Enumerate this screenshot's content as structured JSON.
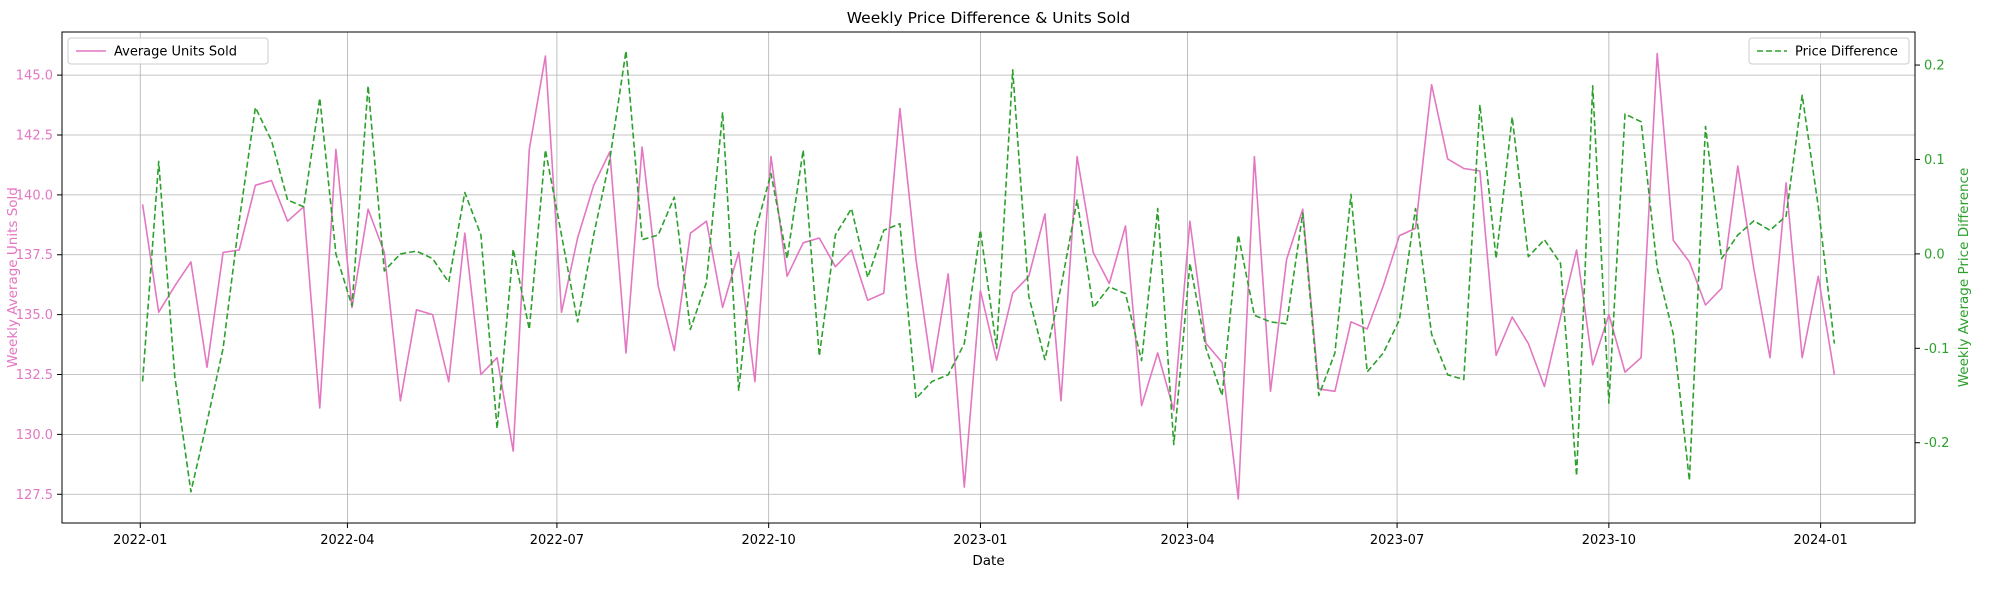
{
  "chart_data": {
    "type": "line",
    "title": "Weekly Price Difference & Units Sold",
    "xlabel": "Date",
    "ylabel_left": "Weekly Average Units Sold",
    "ylabel_right": "Weekly Average Price Difference",
    "grid": true,
    "xlim": [
      "2021-11-28",
      "2024-02-11"
    ],
    "ylim_left": [
      126.3,
      146.8
    ],
    "ylim_right": [
      -0.285,
      0.235
    ],
    "x_ticks": [
      "2022-01",
      "2022-04",
      "2022-07",
      "2022-10",
      "2023-01",
      "2023-04",
      "2023-07",
      "2023-10",
      "2024-01"
    ],
    "y_ticks_left": [
      "127.5",
      "130.0",
      "132.5",
      "135.0",
      "137.5",
      "140.0",
      "142.5",
      "145.0"
    ],
    "y_ticks_right": [
      "-0.2",
      "-0.1",
      "0.0",
      "0.1",
      "0.2"
    ],
    "colors": {
      "units": "#e377c2",
      "price": "#2ca02c"
    },
    "x_start": "2022-01-02",
    "x_step_days": 7,
    "series": [
      {
        "name": "Average Units Sold",
        "axis": "left",
        "legend_position": "upper left",
        "style": "solid",
        "values": [
          139.6,
          135.1,
          136.2,
          137.2,
          132.8,
          137.6,
          137.7,
          140.4,
          140.6,
          138.9,
          139.5,
          131.1,
          141.9,
          135.3,
          139.4,
          137.6,
          131.4,
          135.2,
          135.0,
          132.2,
          138.4,
          132.5,
          133.2,
          129.3,
          141.9,
          145.8,
          135.1,
          138.2,
          140.4,
          141.8,
          133.4,
          142.0,
          136.2,
          133.5,
          138.4,
          138.9,
          135.3,
          137.6,
          132.2,
          141.6,
          136.6,
          138.0,
          138.2,
          137.0,
          137.7,
          135.6,
          135.9,
          143.6,
          137.3,
          132.6,
          136.7,
          127.8,
          136.0,
          133.1,
          135.9,
          136.6,
          139.2,
          131.4,
          141.6,
          137.6,
          136.3,
          138.7,
          131.2,
          133.4,
          131.0,
          138.9,
          133.8,
          133.0,
          127.3,
          141.6,
          131.8,
          137.3,
          139.4,
          131.9,
          131.8,
          134.7,
          134.4,
          136.2,
          138.3,
          138.6,
          144.6,
          141.5,
          141.1,
          141.0,
          133.3,
          134.9,
          133.8,
          132.0,
          134.9,
          137.7,
          132.9,
          135.0,
          132.6,
          133.2,
          145.9,
          138.1,
          137.2,
          135.4,
          136.1,
          141.2,
          136.9,
          133.2,
          140.5,
          133.2,
          136.6,
          132.5
        ]
      },
      {
        "name": "Price Difference",
        "axis": "right",
        "legend_position": "upper right",
        "style": "dashed",
        "values": [
          -0.135,
          0.098,
          -0.13,
          -0.252,
          -0.178,
          -0.1,
          0.035,
          0.155,
          0.12,
          0.057,
          0.05,
          0.165,
          0.0,
          -0.055,
          0.178,
          -0.018,
          0.0,
          0.003,
          -0.005,
          -0.03,
          0.065,
          0.02,
          -0.185,
          0.005,
          -0.08,
          0.11,
          0.02,
          -0.072,
          0.02,
          0.1,
          0.215,
          0.015,
          0.02,
          0.06,
          -0.08,
          -0.03,
          0.15,
          -0.145,
          0.022,
          0.085,
          -0.005,
          0.11,
          -0.108,
          0.02,
          0.048,
          -0.025,
          0.025,
          0.032,
          -0.153,
          -0.135,
          -0.128,
          -0.095,
          0.025,
          -0.1,
          0.195,
          -0.045,
          -0.112,
          -0.035,
          0.057,
          -0.057,
          -0.035,
          -0.042,
          -0.113,
          0.048,
          -0.202,
          -0.01,
          -0.1,
          -0.15,
          0.02,
          -0.065,
          -0.072,
          -0.074,
          0.043,
          -0.15,
          -0.105,
          0.063,
          -0.125,
          -0.105,
          -0.07,
          0.048,
          -0.085,
          -0.128,
          -0.133,
          0.158,
          -0.005,
          0.145,
          -0.003,
          0.015,
          -0.01,
          -0.235,
          0.178,
          -0.158,
          0.148,
          0.14,
          -0.015,
          -0.085,
          -0.24,
          0.135,
          -0.005,
          0.02,
          0.035,
          0.025,
          0.04,
          0.168,
          0.05,
          -0.095
        ]
      }
    ]
  }
}
